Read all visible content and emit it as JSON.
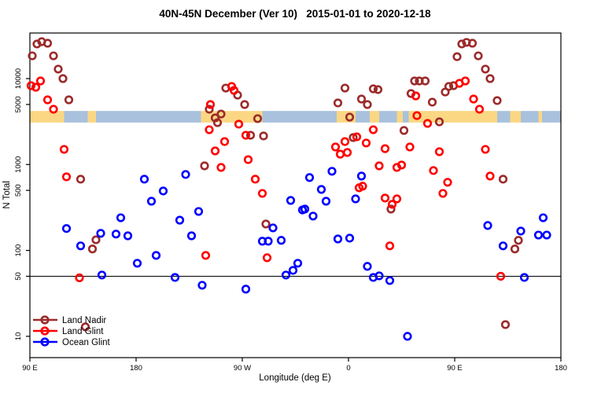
{
  "chart_data": {
    "type": "scatter",
    "title": "40N-45N December (Ver 10)   2015-01-01 to 2020-12-18",
    "xlabel": "Longitude (deg E)",
    "ylabel": "N Total",
    "x_axis": {
      "min_deg": 90,
      "max_deg": 540,
      "ticks": [
        {
          "deg": 90,
          "label": "90 E"
        },
        {
          "deg": 180,
          "label": "180"
        },
        {
          "deg": 270,
          "label": "90 W"
        },
        {
          "deg": 360,
          "label": "0"
        },
        {
          "deg": 450,
          "label": "90 E"
        },
        {
          "deg": 540,
          "label": "180"
        }
      ]
    },
    "y_axis": {
      "scale": "log10",
      "min": 6,
      "max": 34000,
      "ticks": [
        {
          "value": 10000,
          "label": "10000"
        },
        {
          "value": 5000,
          "label": "5000"
        },
        {
          "value": 1000,
          "label": "1000"
        },
        {
          "value": 500,
          "label": "500"
        },
        {
          "value": 100,
          "label": "100"
        },
        {
          "value": 50,
          "label": "50"
        },
        {
          "value": 10,
          "label": "10"
        }
      ]
    },
    "reference_line": {
      "value": 50,
      "color": "#000000"
    },
    "map_band": {
      "n_top": 4200,
      "n_bottom": 3080,
      "land_color": "#FBD783",
      "ocean_color": "#A9C1DD",
      "segments": [
        {
          "from": 90,
          "to": 119,
          "type": "land"
        },
        {
          "from": 119,
          "to": 139,
          "type": "ocean"
        },
        {
          "from": 139,
          "to": 146,
          "type": "land"
        },
        {
          "from": 146,
          "to": 235,
          "type": "ocean"
        },
        {
          "from": 235,
          "to": 287,
          "type": "land"
        },
        {
          "from": 287,
          "to": 350,
          "type": "ocean"
        },
        {
          "from": 350,
          "to": 366,
          "type": "land"
        },
        {
          "from": 366,
          "to": 378,
          "type": "ocean"
        },
        {
          "from": 378,
          "to": 386,
          "type": "land"
        },
        {
          "from": 386,
          "to": 401,
          "type": "ocean"
        },
        {
          "from": 401,
          "to": 406,
          "type": "land"
        },
        {
          "from": 406,
          "to": 411,
          "type": "ocean"
        },
        {
          "from": 411,
          "to": 486,
          "type": "land"
        },
        {
          "from": 486,
          "to": 497,
          "type": "ocean"
        },
        {
          "from": 497,
          "to": 506,
          "type": "land"
        },
        {
          "from": 506,
          "to": 521,
          "type": "ocean"
        },
        {
          "from": 521,
          "to": 524,
          "type": "land"
        },
        {
          "from": 524,
          "to": 540,
          "type": "ocean"
        }
      ]
    },
    "series": [
      {
        "name": "Land Nadir",
        "color": "#9C2B2B",
        "points": [
          [
            92,
            18400
          ],
          [
            96,
            25300
          ],
          [
            100,
            26900
          ],
          [
            105,
            25800
          ],
          [
            110,
            18400
          ],
          [
            114,
            12900
          ],
          [
            118,
            10000
          ],
          [
            123,
            5660
          ],
          [
            133,
            675
          ],
          [
            146,
            133
          ],
          [
            143,
            104
          ],
          [
            137,
            12.9
          ],
          [
            242,
            4400
          ],
          [
            238,
            965
          ],
          [
            256,
            7760
          ],
          [
            266,
            6420
          ],
          [
            272,
            4990
          ],
          [
            252,
            3870
          ],
          [
            247,
            3490
          ],
          [
            249,
            3070
          ],
          [
            283,
            3420
          ],
          [
            277,
            2190
          ],
          [
            288,
            2150
          ],
          [
            290,
            203
          ],
          [
            357,
            7760
          ],
          [
            381,
            7600
          ],
          [
            385,
            7450
          ],
          [
            371,
            5780
          ],
          [
            351,
            5210
          ],
          [
            376,
            4990
          ],
          [
            361,
            3560
          ],
          [
            364,
            2060
          ],
          [
            407,
            2490
          ],
          [
            396,
            303
          ],
          [
            416,
            9390
          ],
          [
            420,
            9390
          ],
          [
            425,
            9390
          ],
          [
            413,
            6700
          ],
          [
            442,
            6980
          ],
          [
            445,
            8110
          ],
          [
            449,
            8270
          ],
          [
            431,
            5320
          ],
          [
            437,
            3140
          ],
          [
            452,
            18000
          ],
          [
            456,
            25300
          ],
          [
            460,
            26400
          ],
          [
            465,
            25800
          ],
          [
            470,
            18400
          ],
          [
            476,
            12900
          ],
          [
            480,
            10000
          ],
          [
            486,
            5550
          ],
          [
            491,
            675
          ],
          [
            504,
            131
          ],
          [
            501,
            104
          ],
          [
            493,
            13.7
          ]
        ]
      },
      {
        "name": "Land Glint",
        "color": "#FF0000",
        "points": [
          [
            99,
            9390
          ],
          [
            91,
            8270
          ],
          [
            95,
            7930
          ],
          [
            105,
            5660
          ],
          [
            110,
            4400
          ],
          [
            119,
            1500
          ],
          [
            121,
            719
          ],
          [
            132,
            48
          ],
          [
            261,
            8110
          ],
          [
            263,
            7290
          ],
          [
            243,
            4990
          ],
          [
            242,
            2540
          ],
          [
            267,
            2950
          ],
          [
            273,
            2190
          ],
          [
            255,
            1850
          ],
          [
            247,
            1440
          ],
          [
            252,
            925
          ],
          [
            275,
            1140
          ],
          [
            281,
            675
          ],
          [
            287,
            461
          ],
          [
            239,
            87.5
          ],
          [
            291,
            82.2
          ],
          [
            381,
            2540
          ],
          [
            367,
            2100
          ],
          [
            357,
            1850
          ],
          [
            375,
            1780
          ],
          [
            349,
            1600
          ],
          [
            391,
            1530
          ],
          [
            359,
            1380
          ],
          [
            353,
            1320
          ],
          [
            386,
            965
          ],
          [
            372,
            559
          ],
          [
            369,
            536
          ],
          [
            391,
            407
          ],
          [
            395,
            113
          ],
          [
            454,
            8810
          ],
          [
            459,
            9390
          ],
          [
            417,
            6290
          ],
          [
            466,
            5780
          ],
          [
            418,
            3710
          ],
          [
            427,
            3010
          ],
          [
            471,
            4400
          ],
          [
            412,
            1600
          ],
          [
            437,
            1410
          ],
          [
            405,
            986
          ],
          [
            401,
            925
          ],
          [
            432,
            851
          ],
          [
            444,
            621
          ],
          [
            440,
            461
          ],
          [
            401,
            398
          ],
          [
            397,
            344
          ],
          [
            480,
            734
          ],
          [
            476,
            1500
          ],
          [
            489,
            50
          ]
        ]
      },
      {
        "name": "Ocean Glint",
        "color": "#0000FF",
        "points": [
          [
            121,
            180
          ],
          [
            133,
            113
          ],
          [
            150,
            158
          ],
          [
            163,
            155
          ],
          [
            151,
            51.7
          ],
          [
            167,
            240
          ],
          [
            187,
            675
          ],
          [
            203,
            492
          ],
          [
            193,
            374
          ],
          [
            222,
            766
          ],
          [
            217,
            225
          ],
          [
            233,
            284
          ],
          [
            173,
            148
          ],
          [
            227,
            148
          ],
          [
            197,
            87.5
          ],
          [
            181,
            70.9
          ],
          [
            213,
            48.5
          ],
          [
            236,
            39.3
          ],
          [
            311,
            382
          ],
          [
            321,
            296
          ],
          [
            296,
            183
          ],
          [
            287,
            128
          ],
          [
            292,
            128
          ],
          [
            303,
            131
          ],
          [
            317,
            70.9
          ],
          [
            313,
            58.6
          ],
          [
            307,
            51.7
          ],
          [
            273,
            35.4
          ],
          [
            346,
            834
          ],
          [
            327,
            705
          ],
          [
            337,
            513
          ],
          [
            371,
            734
          ],
          [
            341,
            374
          ],
          [
            366,
            398
          ],
          [
            323,
            303
          ],
          [
            330,
            251
          ],
          [
            351,
            136
          ],
          [
            361,
            139
          ],
          [
            376,
            65.2
          ],
          [
            381,
            48.5
          ],
          [
            386,
            50.6
          ],
          [
            395,
            44.6
          ],
          [
            410,
            10
          ],
          [
            525,
            240
          ],
          [
            478,
            195
          ],
          [
            506,
            168
          ],
          [
            521,
            151
          ],
          [
            528,
            151
          ],
          [
            491,
            113
          ],
          [
            509,
            48.5
          ]
        ]
      }
    ],
    "legend": {
      "position": "bottom-left",
      "items": [
        "Land Nadir",
        "Land Glint",
        "Ocean Glint"
      ]
    }
  }
}
